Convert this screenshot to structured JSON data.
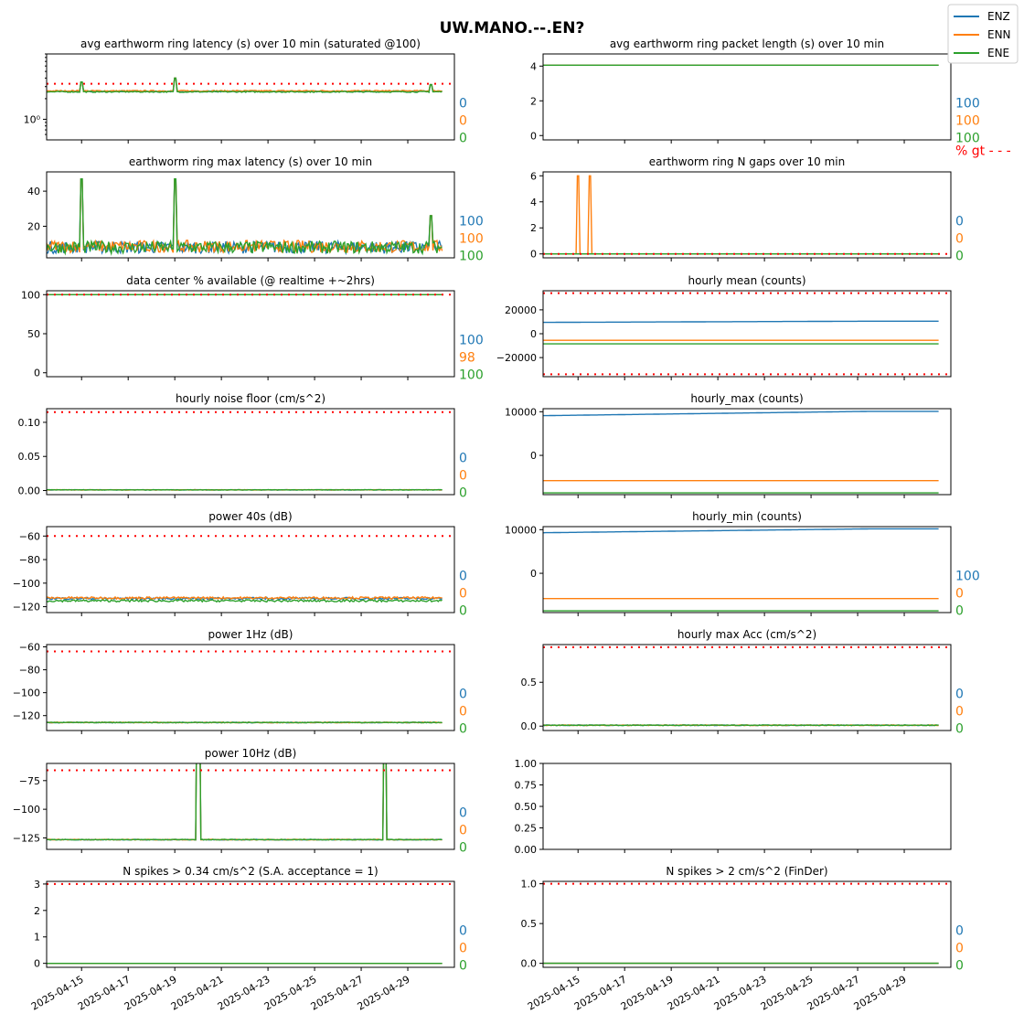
{
  "figure": {
    "title": "UW.MANO.--.EN?",
    "legend": {
      "placement": "top-right",
      "entries": [
        {
          "name": "ENZ",
          "color": "#1f77b4"
        },
        {
          "name": "ENN",
          "color": "#ff7f0e"
        },
        {
          "name": "ENE",
          "color": "#2ca02c"
        }
      ]
    },
    "threshold_color": "#ff0000",
    "pct_label": "% gt - - -",
    "x_ticks": [
      "2025-04-15",
      "2025-04-17",
      "2025-04-19",
      "2025-04-21",
      "2025-04-23",
      "2025-04-25",
      "2025-04-27",
      "2025-04-29"
    ]
  },
  "chart_data": [
    {
      "title": "avg earthworm ring latency (s)   over 10 min (saturated @100)",
      "type": "line",
      "yscale": "log",
      "ylim": [
        0.5,
        9
      ],
      "ytick_labels": [
        {
          "v": 1,
          "t": "10⁰"
        }
      ],
      "threshold": [
        3.3
      ],
      "baseline": [
        2.55,
        2.6,
        2.52
      ],
      "noise": 0.05,
      "spikes": [
        {
          "x": "2025-04-15",
          "h": 3.5
        },
        {
          "x": "2025-04-19",
          "h": 4.0
        },
        {
          "x": "2025-04-30",
          "h": 3.2
        }
      ],
      "pct": [
        "0",
        "0",
        "0"
      ]
    },
    {
      "title": "avg earthworm ring packet length (s)   over 10 min",
      "type": "line",
      "ylim": [
        -0.25,
        4.7
      ],
      "yticks": [
        0,
        2,
        4
      ],
      "threshold": [],
      "baseline": [
        4.05,
        4.05,
        4.05
      ],
      "noise": 0,
      "pct": [
        "100",
        "100",
        "100"
      ],
      "show_pct_label": true
    },
    {
      "title": "earthworm ring max latency (s)   over 10 min",
      "type": "line",
      "ylim": [
        2,
        51
      ],
      "yticks": [
        20,
        40
      ],
      "threshold": [],
      "baseline": [
        8,
        8.5,
        8
      ],
      "noise": 3.5,
      "spikes": [
        {
          "x": "2025-04-15",
          "h": 47
        },
        {
          "x": "2025-04-19",
          "h": 47
        },
        {
          "x": "2025-04-30",
          "h": 26
        }
      ],
      "pct": [
        "100",
        "100",
        "100"
      ]
    },
    {
      "title": "earthworm ring N gaps   over 10 min",
      "type": "line",
      "ylim": [
        -0.3,
        6.3
      ],
      "yticks": [
        0,
        2,
        4,
        6
      ],
      "threshold": [
        0
      ],
      "baseline": [
        0,
        0,
        0
      ],
      "noise": 0,
      "spikes": [
        {
          "x": "2025-04-15",
          "h": 6,
          "series": 1
        },
        {
          "x": "2025-04-15.5",
          "h": 6,
          "series": 1
        }
      ],
      "pct": [
        "0",
        "0",
        "0"
      ]
    },
    {
      "title": "data center % available (@ realtime +~2hrs)",
      "type": "line",
      "ylim": [
        -5,
        105
      ],
      "yticks": [
        0,
        50,
        100
      ],
      "threshold": [
        100
      ],
      "baseline": [
        100,
        100,
        100
      ],
      "noise": 0,
      "pct": [
        "100",
        "98",
        "100"
      ]
    },
    {
      "title": "hourly mean (counts)",
      "type": "line",
      "ylim": [
        -36000,
        36000
      ],
      "yticks": [
        -20000,
        0,
        20000
      ],
      "ytick_labels": [
        {
          "v": -20000,
          "t": "−20000"
        },
        {
          "v": 0,
          "t": "0"
        },
        {
          "v": 20000,
          "t": "20000"
        }
      ],
      "threshold": [
        34000,
        -34000
      ],
      "baseline": [
        9500,
        -5500,
        -8500
      ],
      "trend": [
        1000,
        0,
        0
      ],
      "noise": 0,
      "pct": [
        "",
        "",
        ""
      ]
    },
    {
      "title": "hourly noise floor (cm/s^2)",
      "type": "line",
      "ylim": [
        -0.006,
        0.12
      ],
      "yticks": [
        0.0,
        0.05,
        0.1
      ],
      "ytick_labels": [
        {
          "v": 0,
          "t": "0.00"
        },
        {
          "v": 0.05,
          "t": "0.05"
        },
        {
          "v": 0.1,
          "t": "0.10"
        }
      ],
      "threshold": [
        0.115
      ],
      "baseline": [
        0.001,
        0.001,
        0.001
      ],
      "noise": 0.0003,
      "pct": [
        "0",
        "0",
        "0"
      ]
    },
    {
      "title": "hourly_max (counts)",
      "type": "line",
      "ylim": [
        -9000,
        10700
      ],
      "yticks": [
        0,
        10000
      ],
      "threshold": [],
      "baseline": [
        9100,
        -5800,
        -8600
      ],
      "trend": [
        1000,
        0,
        0
      ],
      "noise": 0,
      "pct": [
        "",
        "",
        ""
      ]
    },
    {
      "title": "power 40s (dB)",
      "type": "line",
      "ylim": [
        -125,
        -52
      ],
      "yticks": [
        -120,
        -100,
        -80,
        -60
      ],
      "ytick_labels": [
        {
          "v": -120,
          "t": "−120"
        },
        {
          "v": -100,
          "t": "−100"
        },
        {
          "v": -80,
          "t": "−80"
        },
        {
          "v": -60,
          "t": "−60"
        }
      ],
      "threshold": [
        -60
      ],
      "baseline": [
        -113,
        -112.5,
        -115
      ],
      "noise": 0.9,
      "pct": [
        "0",
        "0",
        "0"
      ]
    },
    {
      "title": "hourly_min (counts)",
      "type": "line",
      "ylim": [
        -9000,
        10700
      ],
      "yticks": [
        0,
        10000
      ],
      "threshold": [],
      "baseline": [
        9300,
        -5800,
        -8600
      ],
      "trend": [
        900,
        0,
        0
      ],
      "noise": 0,
      "pct": [
        "100",
        "0",
        "0"
      ]
    },
    {
      "title": "power 1Hz (dB)",
      "type": "line",
      "ylim": [
        -133,
        -58
      ],
      "yticks": [
        -120,
        -100,
        -80,
        -60
      ],
      "ytick_labels": [
        {
          "v": -120,
          "t": "−120"
        },
        {
          "v": -100,
          "t": "−100"
        },
        {
          "v": -80,
          "t": "−80"
        },
        {
          "v": -60,
          "t": "−60"
        }
      ],
      "threshold": [
        -64
      ],
      "baseline": [
        -126,
        -126,
        -126
      ],
      "noise": 0.3,
      "pct": [
        "0",
        "0",
        "0"
      ]
    },
    {
      "title": "hourly max Acc (cm/s^2)",
      "type": "line",
      "ylim": [
        -0.05,
        0.93
      ],
      "yticks": [
        0,
        0.5
      ],
      "ytick_labels": [
        {
          "v": 0,
          "t": "0.0"
        },
        {
          "v": 0.5,
          "t": "0.5"
        }
      ],
      "threshold": [
        0.9
      ],
      "baseline": [
        0.01,
        0.01,
        0.01
      ],
      "noise": 0.004,
      "pct": [
        "0",
        "0",
        "0"
      ]
    },
    {
      "title": "power 10Hz (dB)",
      "type": "line",
      "ylim": [
        -135,
        -60
      ],
      "yticks": [
        -125,
        -100,
        -75
      ],
      "ytick_labels": [
        {
          "v": -125,
          "t": "−125"
        },
        {
          "v": -100,
          "t": "−100"
        },
        {
          "v": -75,
          "t": "−75"
        }
      ],
      "threshold": [
        -66
      ],
      "baseline": [
        -126.5,
        -126.5,
        -126.5
      ],
      "noise": 0.3,
      "spikes": [
        {
          "x": "2025-04-20",
          "h": 4
        },
        {
          "x": "2025-04-28",
          "h": 3
        }
      ],
      "pct": [
        "0",
        "0",
        "0"
      ]
    },
    {
      "title": "",
      "type": "empty",
      "ylim": [
        0,
        1
      ],
      "yticks": [
        0,
        0.25,
        0.5,
        0.75,
        1.0
      ],
      "ytick_labels": [
        {
          "v": 0,
          "t": "0.00"
        },
        {
          "v": 0.25,
          "t": "0.25"
        },
        {
          "v": 0.5,
          "t": "0.50"
        },
        {
          "v": 0.75,
          "t": "0.75"
        },
        {
          "v": 1,
          "t": "1.00"
        }
      ],
      "threshold": [],
      "pct": [
        "",
        "",
        ""
      ]
    },
    {
      "title": "N spikes > 0.34 cm/s^2 (S.A. acceptance = 1)",
      "type": "line",
      "ylim": [
        -0.15,
        3.1
      ],
      "yticks": [
        0,
        1,
        2,
        3
      ],
      "threshold": [
        3
      ],
      "baseline": [
        0,
        0,
        0
      ],
      "noise": 0,
      "pct": [
        "0",
        "0",
        "0"
      ]
    },
    {
      "title": "N spikes > 2 cm/s^2 (FinDer)",
      "type": "line",
      "ylim": [
        -0.05,
        1.03
      ],
      "yticks": [
        0,
        0.5,
        1.0
      ],
      "ytick_labels": [
        {
          "v": 0,
          "t": "0.0"
        },
        {
          "v": 0.5,
          "t": "0.5"
        },
        {
          "v": 1,
          "t": "1.0"
        }
      ],
      "threshold": [
        1
      ],
      "baseline": [
        0,
        0,
        0
      ],
      "noise": 0,
      "pct": [
        "0",
        "0",
        "0"
      ]
    }
  ]
}
